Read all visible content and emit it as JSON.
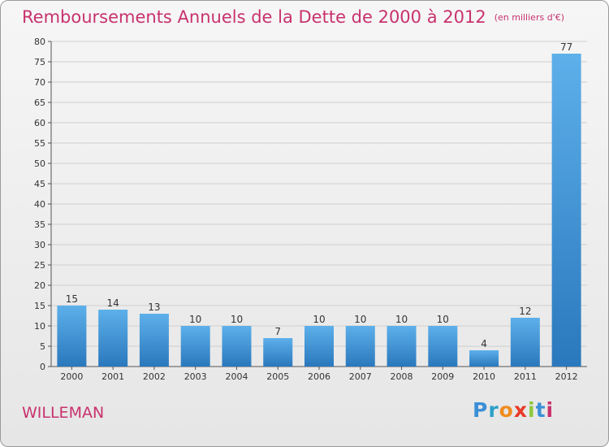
{
  "title": "Remboursements Annuels de la Dette de 2000 à 2012",
  "subtitle": "(en milliers d'€)",
  "commune": "WILLEMAN",
  "logo": {
    "letters": [
      "P",
      "r",
      "o",
      "x",
      "i",
      "t",
      "i"
    ],
    "colors": [
      "#3b8fd6",
      "#2ea0c8",
      "#f08c1e",
      "#e83a2a",
      "#8cc83c",
      "#3b8fd6",
      "#c8326e"
    ]
  },
  "chart_data": {
    "type": "bar",
    "title": "Remboursements Annuels de la Dette de 2000 à 2012",
    "categories": [
      "2000",
      "2001",
      "2002",
      "2003",
      "2004",
      "2005",
      "2006",
      "2007",
      "2008",
      "2009",
      "2010",
      "2011",
      "2012"
    ],
    "values": [
      15,
      14,
      13,
      10,
      10,
      7,
      10,
      10,
      10,
      10,
      4,
      12,
      77
    ],
    "ylim": [
      0,
      80
    ],
    "yticks": [
      "0",
      "5",
      "10",
      "15",
      "20",
      "25",
      "30",
      "35",
      "40",
      "45",
      "50",
      "55",
      "60",
      "65",
      "70",
      "75",
      "80"
    ],
    "grid": true,
    "xlabel": "",
    "ylabel": "",
    "bar_color": "#3b8fd6"
  }
}
